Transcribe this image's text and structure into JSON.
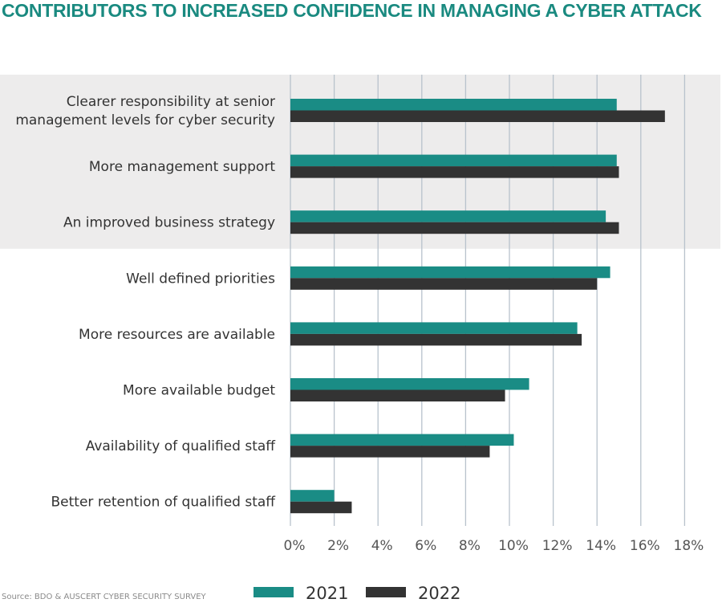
{
  "chart_data": {
    "type": "bar",
    "orientation": "horizontal",
    "title": "CONTRIBUTORS TO INCREASED CONFIDENCE IN MANAGING A CYBER ATTACK",
    "categories": [
      [
        "Clearer responsibility at senior",
        "management levels for cyber security"
      ],
      [
        "More management support"
      ],
      [
        "An improved business strategy"
      ],
      [
        "Well defined priorities"
      ],
      [
        "More resources are available"
      ],
      [
        "More available budget"
      ],
      [
        "Availability of qualified staff"
      ],
      [
        "Better retention of qualified staff"
      ]
    ],
    "series": [
      {
        "name": "2021",
        "color": "#1a8c85",
        "values": [
          14.9,
          14.9,
          14.4,
          14.6,
          13.1,
          10.9,
          10.2,
          2.0
        ]
      },
      {
        "name": "2022",
        "color": "#333333",
        "values": [
          17.1,
          15.0,
          15.0,
          14.0,
          13.3,
          9.8,
          9.1,
          2.8
        ]
      }
    ],
    "xlim": [
      0,
      18
    ],
    "xticks": [
      0,
      2,
      4,
      6,
      8,
      10,
      12,
      14,
      16,
      18
    ],
    "tick_suffix": "%",
    "highlighted_rows": 3,
    "grid": true,
    "legend": "bottom",
    "source": "Source: BDO & AUSCERT CYBER SECURITY SURVEY"
  }
}
